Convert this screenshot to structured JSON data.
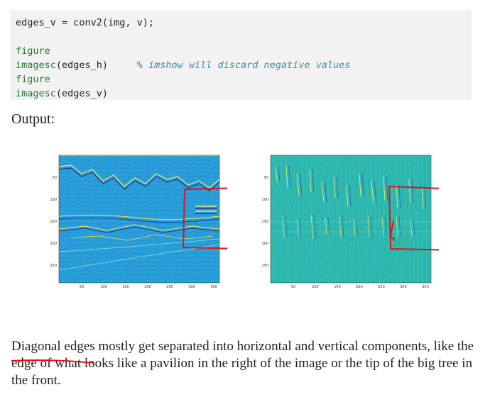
{
  "code": {
    "lines": [
      {
        "type": "plain",
        "text": "edges_v = conv2(img, v);"
      },
      {
        "type": "blank"
      },
      {
        "type": "kw",
        "text": "figure"
      },
      {
        "type": "call",
        "fn": "imagesc",
        "arg": "(edges_h)",
        "comment": "% imshow will discard negative values"
      },
      {
        "type": "kw",
        "text": "figure"
      },
      {
        "type": "call",
        "fn": "imagesc",
        "arg": "(edges_v)"
      }
    ]
  },
  "output_label": "Output:",
  "plots": {
    "yticks": [
      "50",
      "100",
      "150",
      "200",
      "250"
    ],
    "xticks": [
      "50",
      "100",
      "150",
      "200",
      "250",
      "300",
      "350"
    ]
  },
  "paragraph": {
    "underlined": "Diagonal edges",
    "rest": " mostly get separated into horizontal and vertical components, like the edge of what looks like a pavilion in the right of the image or the tip of the big tree in the front."
  },
  "colors": {
    "annotation_red": "#e0141e",
    "plot_bg": "#2aa0d8",
    "plot_bg_right": "#2ab6b0",
    "edge_yellow": "#f5e94a"
  }
}
